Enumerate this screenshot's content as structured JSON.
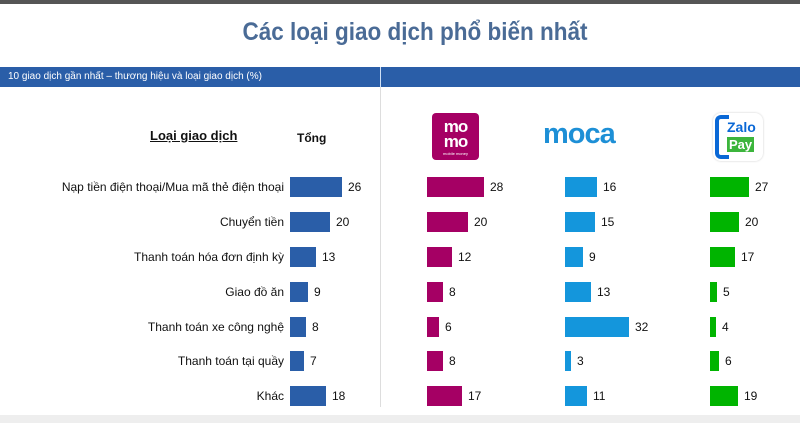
{
  "title": "Các loại giao dịch phổ biến nhất",
  "subtitle_band": "10 giao dịch gần nhất – thương hiệu và loại giao dịch (%)",
  "headers": {
    "type": "Loại giao dịch",
    "total": "Tổng"
  },
  "brands": {
    "momo": {
      "line1": "mo",
      "line2": "mo",
      "sub": "mobile money",
      "color": "#a50064"
    },
    "moca": {
      "text": "moca",
      "color": "#1d8fd6"
    },
    "zalopay": {
      "line1": "Zalo",
      "line2": "Pay",
      "color": "#00b400"
    }
  },
  "colors": {
    "total": "#2a5ea8",
    "momo": "#a50064",
    "moca": "#1496dc",
    "zalopay": "#00b400"
  },
  "chart_data": {
    "type": "bar",
    "orientation": "horizontal",
    "title": "Các loại giao dịch phổ biến nhất",
    "subtitle": "10 giao dịch gần nhất – thương hiệu và loại giao dịch (%)",
    "categories": [
      "Nạp tiền điện thoại/Mua mã thẻ điện thoại",
      "Chuyển tiền",
      "Thanh toán hóa đơn định kỳ",
      "Giao đồ ăn",
      "Thanh toán xe công nghệ",
      "Thanh toán  tại quầy",
      "Khác"
    ],
    "series": [
      {
        "name": "Tổng",
        "values": [
          26,
          20,
          13,
          9,
          8,
          7,
          18
        ]
      },
      {
        "name": "MoMo",
        "values": [
          28,
          20,
          12,
          8,
          6,
          8,
          17
        ]
      },
      {
        "name": "Moca",
        "values": [
          16,
          15,
          9,
          13,
          32,
          3,
          11
        ]
      },
      {
        "name": "ZaloPay",
        "values": [
          27,
          20,
          17,
          5,
          4,
          6,
          19
        ]
      }
    ],
    "xlabel": "",
    "ylabel": "Loại giao dịch",
    "unit": "%",
    "grid": false,
    "legend": "logos above columns"
  }
}
